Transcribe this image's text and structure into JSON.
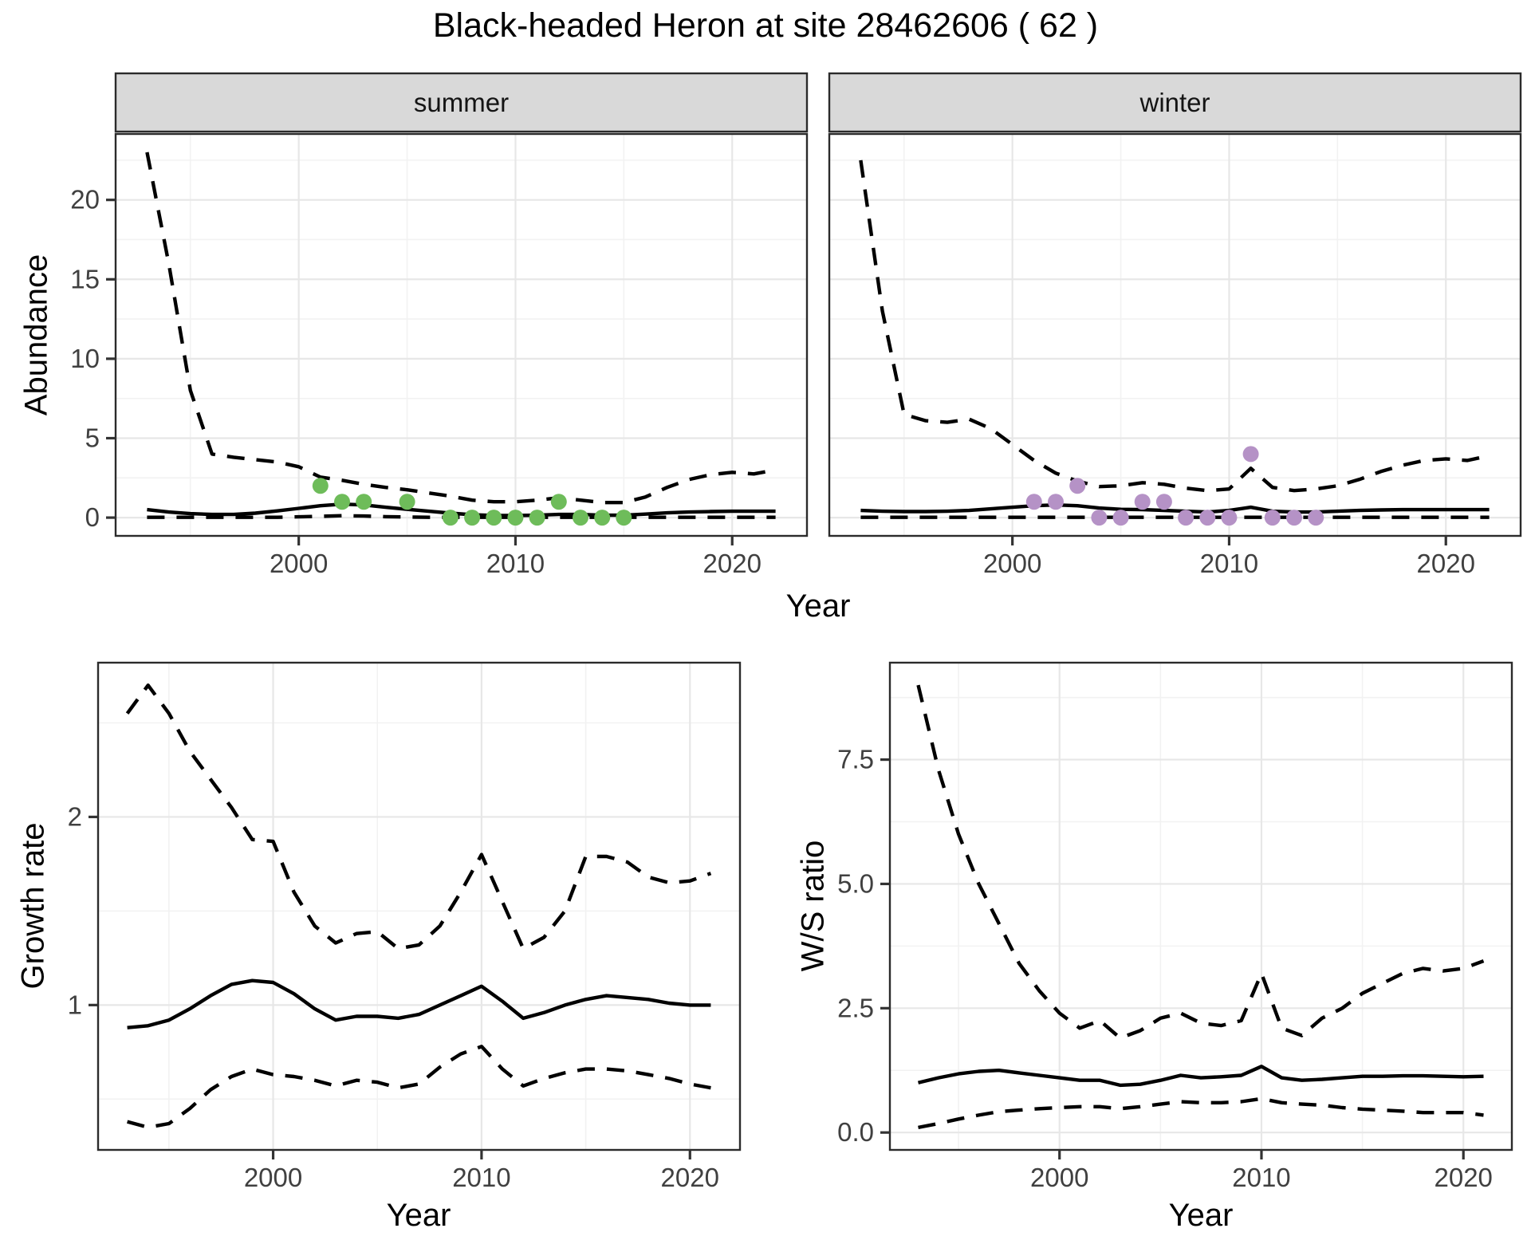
{
  "title": "Black-headed Heron at site 28462606 ( 62 )",
  "labels": {
    "abundance_axis": "Abundance",
    "growth_axis": "Growth rate",
    "ws_axis": "W/S ratio",
    "year_axis_top": "Year",
    "year_axis_bottom_left": "Year",
    "year_axis_bottom_right": "Year",
    "facet_summer": "summer",
    "facet_winter": "winter"
  },
  "colors": {
    "summer_point": "#6EBC5A",
    "winter_point": "#B592C6",
    "line": "#000000",
    "grid_major": "#E7E7E7",
    "grid_minor": "#F2F2F2",
    "panel_border": "#2B2B2B",
    "tick_mark": "#333333",
    "tick_text": "#404040",
    "strip_bg": "#D9D9D9",
    "panel_bg": "#FFFFFF"
  },
  "chart_data": [
    {
      "type": "line",
      "panel": "summer",
      "title_strip": "summer",
      "ylabel": "Abundance",
      "xlabel": "Year",
      "x": [
        1993,
        1994,
        1995,
        1996,
        1997,
        1998,
        1999,
        2000,
        2001,
        2002,
        2003,
        2004,
        2005,
        2006,
        2007,
        2008,
        2009,
        2010,
        2011,
        2012,
        2013,
        2014,
        2015,
        2016,
        2017,
        2018,
        2019,
        2020,
        2021,
        2022
      ],
      "series": [
        {
          "name": "upper_ci",
          "style": "dashed",
          "values": [
            23,
            16,
            8,
            4.0,
            3.8,
            3.65,
            3.5,
            3.2,
            2.55,
            2.35,
            2.1,
            1.9,
            1.75,
            1.55,
            1.35,
            1.1,
            1.0,
            1.0,
            1.1,
            1.25,
            1.1,
            0.95,
            0.95,
            1.3,
            1.9,
            2.4,
            2.7,
            2.85,
            2.75,
            3.0
          ]
        },
        {
          "name": "mean",
          "style": "solid",
          "values": [
            0.5,
            0.35,
            0.25,
            0.2,
            0.2,
            0.28,
            0.42,
            0.58,
            0.75,
            0.85,
            0.8,
            0.65,
            0.52,
            0.4,
            0.28,
            0.18,
            0.13,
            0.13,
            0.15,
            0.2,
            0.2,
            0.15,
            0.15,
            0.22,
            0.3,
            0.35,
            0.38,
            0.4,
            0.4,
            0.4
          ]
        },
        {
          "name": "lower_ci",
          "style": "dashed",
          "values": [
            0.02,
            0.02,
            0.02,
            0.02,
            0.02,
            0.02,
            0.02,
            0.05,
            0.08,
            0.12,
            0.1,
            0.06,
            0.04,
            0.02,
            0.02,
            0.02,
            0.02,
            0.02,
            0.02,
            0.02,
            0.02,
            0.02,
            0.02,
            0.02,
            0.02,
            0.02,
            0.02,
            0.02,
            0.02,
            0.02
          ]
        }
      ],
      "points": {
        "name": "summer_observations",
        "color": "#6EBC5A",
        "data": [
          [
            2001,
            2
          ],
          [
            2002,
            1
          ],
          [
            2003,
            1
          ],
          [
            2005,
            1
          ],
          [
            2007,
            0
          ],
          [
            2008,
            0
          ],
          [
            2009,
            0
          ],
          [
            2010,
            0
          ],
          [
            2011,
            0
          ],
          [
            2012,
            1
          ],
          [
            2013,
            0
          ],
          [
            2014,
            0
          ],
          [
            2015,
            0
          ]
        ]
      },
      "xlim": [
        1991.55,
        2023.45
      ],
      "ylim": [
        -1.15,
        24.15
      ],
      "x_ticks": [
        2000,
        2010,
        2020
      ],
      "x_tick_labels": [
        "2000",
        "2010",
        "2020"
      ],
      "x_minor": [
        1995,
        2005,
        2015
      ],
      "y_ticks": [
        0,
        5,
        10,
        15,
        20
      ],
      "y_tick_labels": [
        "0",
        "5",
        "10",
        "15",
        "20"
      ],
      "y_minor": [
        2.5,
        7.5,
        12.5,
        17.5,
        22.5
      ]
    },
    {
      "type": "line",
      "panel": "winter",
      "title_strip": "winter",
      "ylabel": "Abundance",
      "xlabel": "Year",
      "x": [
        1993,
        1994,
        1995,
        1996,
        1997,
        1998,
        1999,
        2000,
        2001,
        2002,
        2003,
        2004,
        2005,
        2006,
        2007,
        2008,
        2009,
        2010,
        2011,
        2012,
        2013,
        2014,
        2015,
        2016,
        2017,
        2018,
        2019,
        2020,
        2021,
        2022
      ],
      "series": [
        {
          "name": "upper_ci",
          "style": "dashed",
          "values": [
            22.5,
            13,
            6.5,
            6.1,
            6.0,
            6.2,
            5.6,
            4.6,
            3.6,
            2.8,
            2.3,
            1.95,
            2.0,
            2.2,
            2.1,
            1.85,
            1.7,
            1.8,
            3.1,
            1.9,
            1.7,
            1.8,
            2.0,
            2.4,
            2.9,
            3.3,
            3.6,
            3.7,
            3.6,
            3.9
          ]
        },
        {
          "name": "mean",
          "style": "solid",
          "values": [
            0.45,
            0.4,
            0.38,
            0.38,
            0.4,
            0.45,
            0.55,
            0.65,
            0.75,
            0.8,
            0.75,
            0.6,
            0.52,
            0.5,
            0.45,
            0.4,
            0.35,
            0.45,
            0.65,
            0.4,
            0.35,
            0.35,
            0.4,
            0.45,
            0.48,
            0.5,
            0.5,
            0.5,
            0.5,
            0.5
          ]
        },
        {
          "name": "lower_ci",
          "style": "dashed",
          "values": [
            0.02,
            0.02,
            0.02,
            0.02,
            0.02,
            0.02,
            0.02,
            0.02,
            0.02,
            0.02,
            0.02,
            0.02,
            0.02,
            0.02,
            0.02,
            0.02,
            0.02,
            0.02,
            0.02,
            0.02,
            0.02,
            0.02,
            0.02,
            0.02,
            0.02,
            0.02,
            0.02,
            0.02,
            0.02,
            0.02
          ]
        }
      ],
      "points": {
        "name": "winter_observations",
        "color": "#B592C6",
        "data": [
          [
            2001,
            1
          ],
          [
            2002,
            1
          ],
          [
            2003,
            2
          ],
          [
            2004,
            0
          ],
          [
            2005,
            0
          ],
          [
            2006,
            1
          ],
          [
            2007,
            1
          ],
          [
            2008,
            0
          ],
          [
            2009,
            0
          ],
          [
            2010,
            0
          ],
          [
            2011,
            4
          ],
          [
            2012,
            0
          ],
          [
            2013,
            0
          ],
          [
            2014,
            0
          ]
        ]
      },
      "xlim": [
        1991.55,
        2023.45
      ],
      "ylim": [
        -1.15,
        24.15
      ],
      "x_ticks": [
        2000,
        2010,
        2020
      ],
      "x_tick_labels": [
        "2000",
        "2010",
        "2020"
      ],
      "x_minor": [
        1995,
        2005,
        2015
      ],
      "y_ticks": [
        0,
        5,
        10,
        15,
        20
      ],
      "y_tick_labels": [],
      "y_minor": [
        2.5,
        7.5,
        12.5,
        17.5,
        22.5
      ]
    },
    {
      "type": "line",
      "panel": "growth",
      "title_strip": "",
      "ylabel": "Growth rate",
      "xlabel": "Year",
      "x": [
        1993,
        1994,
        1995,
        1996,
        1997,
        1998,
        1999,
        2000,
        2001,
        2002,
        2003,
        2004,
        2005,
        2006,
        2007,
        2008,
        2009,
        2010,
        2011,
        2012,
        2013,
        2014,
        2015,
        2016,
        2017,
        2018,
        2019,
        2020,
        2021
      ],
      "series": [
        {
          "name": "upper_ci",
          "style": "dashed",
          "values": [
            2.55,
            2.7,
            2.55,
            2.35,
            2.2,
            2.05,
            1.88,
            1.87,
            1.6,
            1.42,
            1.33,
            1.38,
            1.39,
            1.3,
            1.32,
            1.42,
            1.6,
            1.8,
            1.55,
            1.3,
            1.36,
            1.5,
            1.79,
            1.79,
            1.76,
            1.68,
            1.65,
            1.66,
            1.7
          ]
        },
        {
          "name": "mean",
          "style": "solid",
          "values": [
            0.88,
            0.89,
            0.92,
            0.98,
            1.05,
            1.11,
            1.13,
            1.12,
            1.06,
            0.98,
            0.92,
            0.94,
            0.94,
            0.93,
            0.95,
            1.0,
            1.05,
            1.1,
            1.02,
            0.93,
            0.96,
            1.0,
            1.03,
            1.05,
            1.04,
            1.03,
            1.01,
            1.0,
            1.0
          ]
        },
        {
          "name": "lower_ci",
          "style": "dashed",
          "values": [
            0.38,
            0.35,
            0.37,
            0.45,
            0.55,
            0.62,
            0.66,
            0.63,
            0.62,
            0.6,
            0.57,
            0.6,
            0.59,
            0.56,
            0.58,
            0.67,
            0.74,
            0.78,
            0.66,
            0.57,
            0.61,
            0.64,
            0.66,
            0.66,
            0.65,
            0.63,
            0.61,
            0.58,
            0.56
          ]
        }
      ],
      "points": null,
      "xlim": [
        1991.6,
        2022.4
      ],
      "ylim": [
        0.23,
        2.82
      ],
      "x_ticks": [
        2000,
        2010,
        2020
      ],
      "x_tick_labels": [
        "2000",
        "2010",
        "2020"
      ],
      "x_minor": [
        1995,
        2005,
        2015
      ],
      "y_ticks": [
        1,
        2
      ],
      "y_tick_labels": [
        "1",
        "2"
      ],
      "y_minor": [
        0.5,
        1.5,
        2.5
      ]
    },
    {
      "type": "line",
      "panel": "ws",
      "title_strip": "",
      "ylabel": "W/S ratio",
      "xlabel": "Year",
      "x": [
        1993,
        1994,
        1995,
        1996,
        1997,
        1998,
        1999,
        2000,
        2001,
        2002,
        2003,
        2004,
        2005,
        2006,
        2007,
        2008,
        2009,
        2010,
        2011,
        2012,
        2013,
        2014,
        2015,
        2016,
        2017,
        2018,
        2019,
        2020,
        2021
      ],
      "series": [
        {
          "name": "upper_ci",
          "style": "dashed",
          "values": [
            9.0,
            7.3,
            6.0,
            5.0,
            4.2,
            3.4,
            2.85,
            2.4,
            2.1,
            2.25,
            1.9,
            2.05,
            2.3,
            2.4,
            2.2,
            2.15,
            2.25,
            3.2,
            2.1,
            1.95,
            2.3,
            2.5,
            2.8,
            3.0,
            3.2,
            3.3,
            3.25,
            3.3,
            3.45
          ]
        },
        {
          "name": "mean",
          "style": "solid",
          "values": [
            1.0,
            1.1,
            1.18,
            1.23,
            1.25,
            1.2,
            1.15,
            1.1,
            1.05,
            1.05,
            0.95,
            0.97,
            1.05,
            1.15,
            1.1,
            1.12,
            1.15,
            1.33,
            1.1,
            1.05,
            1.07,
            1.1,
            1.13,
            1.13,
            1.14,
            1.14,
            1.13,
            1.12,
            1.13
          ]
        },
        {
          "name": "lower_ci",
          "style": "dashed",
          "values": [
            0.1,
            0.18,
            0.27,
            0.35,
            0.42,
            0.45,
            0.48,
            0.5,
            0.52,
            0.52,
            0.48,
            0.52,
            0.57,
            0.62,
            0.6,
            0.6,
            0.62,
            0.68,
            0.6,
            0.57,
            0.55,
            0.5,
            0.47,
            0.45,
            0.43,
            0.4,
            0.4,
            0.4,
            0.35
          ]
        }
      ],
      "points": null,
      "xlim": [
        1991.6,
        2022.4
      ],
      "ylim": [
        -0.35,
        9.45
      ],
      "x_ticks": [
        2000,
        2010,
        2020
      ],
      "x_tick_labels": [
        "2000",
        "2010",
        "2020"
      ],
      "x_minor": [
        1995,
        2005,
        2015
      ],
      "y_ticks": [
        0.0,
        2.5,
        5.0,
        7.5
      ],
      "y_tick_labels": [
        "0.0",
        "2.5",
        "5.0",
        "7.5"
      ],
      "y_minor": [
        1.25,
        3.75,
        6.25,
        8.75
      ]
    }
  ]
}
